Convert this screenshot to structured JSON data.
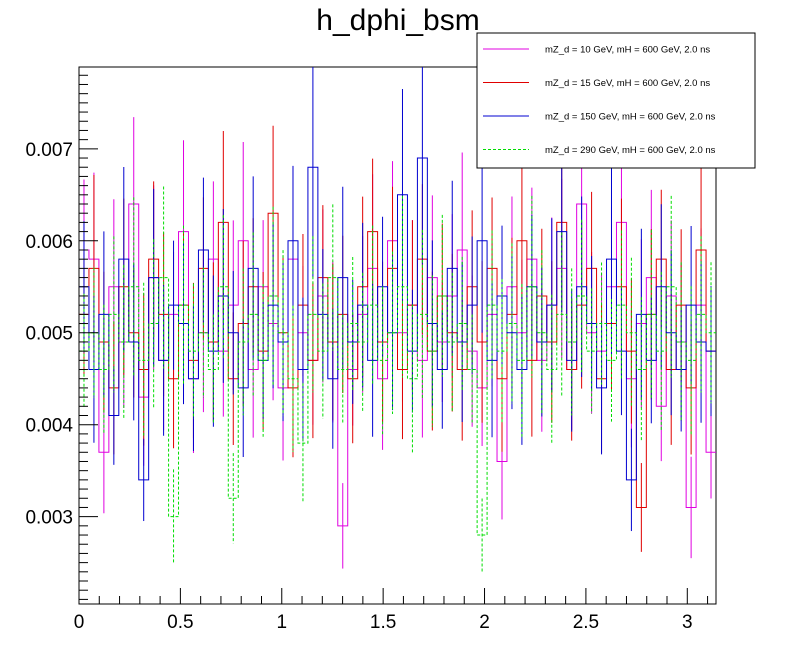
{
  "chart_data": {
    "type": "line",
    "title": "h_dphi_bsm",
    "xlabel": "",
    "ylabel": "",
    "xlim": [
      0,
      3.1416
    ],
    "ylim": [
      0.00205,
      0.00789
    ],
    "x_ticks": [
      0,
      0.5,
      1,
      1.5,
      2,
      2.5,
      3
    ],
    "x_tick_labels": [
      "0",
      "0.5",
      "1",
      "1.5",
      "2",
      "2.5",
      "3"
    ],
    "y_ticks": [
      0.003,
      0.004,
      0.005,
      0.006,
      0.007
    ],
    "y_tick_labels": [
      "0.003",
      "0.004",
      "0.005",
      "0.006",
      "0.007"
    ],
    "grid": false,
    "legend_position": "top-right",
    "bins": 64,
    "series": [
      {
        "name": "mZ_d = 10 GeV, mH = 600 GeV, 2.0 ns",
        "color": "#e000e0",
        "style": "solid",
        "values": [
          0.0059,
          0.0058,
          0.0037,
          0.0055,
          0.0049,
          0.0064,
          0.0043,
          0.0056,
          0.0047,
          0.0052,
          0.0061,
          0.0045,
          0.005,
          0.0058,
          0.0048,
          0.0053,
          0.006,
          0.0046,
          0.0055,
          0.0051,
          0.0044,
          0.0058,
          0.005,
          0.0047,
          0.0054,
          0.0049,
          0.0029,
          0.0046,
          0.0052,
          0.0057,
          0.0045,
          0.006,
          0.005,
          0.0053,
          0.0047,
          0.0056,
          0.0049,
          0.0054,
          0.0059,
          0.0048,
          0.0044,
          0.0052,
          0.0036,
          0.0055,
          0.005,
          0.0058,
          0.0047,
          0.0053,
          0.0057,
          0.0046,
          0.0064,
          0.005,
          0.0048,
          0.0055,
          0.0062,
          0.0045,
          0.0051,
          0.0056,
          0.0042,
          0.0054,
          0.0049,
          0.0031,
          0.0053,
          0.0037
        ]
      },
      {
        "name": "mZ_d = 15 GeV, mH = 600 GeV, 2.0 ns",
        "color": "#e00000",
        "style": "solid",
        "values": [
          0.0052,
          0.0057,
          0.0049,
          0.0044,
          0.0055,
          0.005,
          0.0046,
          0.0058,
          0.0052,
          0.0045,
          0.0053,
          0.0047,
          0.0057,
          0.0049,
          0.0062,
          0.0045,
          0.0051,
          0.0055,
          0.0048,
          0.0063,
          0.005,
          0.0044,
          0.0053,
          0.0047,
          0.0056,
          0.0049,
          0.0052,
          0.0045,
          0.0055,
          0.0061,
          0.0049,
          0.0057,
          0.0046,
          0.0053,
          0.0058,
          0.0048,
          0.0054,
          0.005,
          0.0046,
          0.0055,
          0.0049,
          0.0057,
          0.0045,
          0.0052,
          0.006,
          0.0047,
          0.0054,
          0.0049,
          0.0062,
          0.0046,
          0.0053,
          0.0057,
          0.0045,
          0.0051,
          0.0055,
          0.0048,
          0.0031,
          0.0052,
          0.0058,
          0.0046,
          0.0053,
          0.0044,
          0.0059,
          0.0048
        ]
      },
      {
        "name": "mZ_d = 150 GeV, mH = 600 GeV, 2.0 ns",
        "color": "#0000d0",
        "style": "solid",
        "values": [
          0.0055,
          0.0046,
          0.0052,
          0.0041,
          0.0058,
          0.0049,
          0.0034,
          0.0056,
          0.0047,
          0.0053,
          0.0051,
          0.0045,
          0.0059,
          0.0048,
          0.0054,
          0.005,
          0.0044,
          0.0057,
          0.0047,
          0.0053,
          0.0049,
          0.006,
          0.0046,
          0.0068,
          0.0052,
          0.0045,
          0.0056,
          0.0049,
          0.0053,
          0.0047,
          0.0055,
          0.005,
          0.0065,
          0.0048,
          0.0069,
          0.0051,
          0.0046,
          0.0057,
          0.0049,
          0.0053,
          0.006,
          0.0047,
          0.0054,
          0.005,
          0.0046,
          0.0055,
          0.0049,
          0.0053,
          0.0061,
          0.0047,
          0.0055,
          0.0051,
          0.0044,
          0.0058,
          0.0048,
          0.0034,
          0.0052,
          0.0047,
          0.0055,
          0.005,
          0.0046,
          0.0053,
          0.0049,
          0.0048
        ]
      },
      {
        "name": "mZ_d = 290 GeV, mH = 600 GeV, 2.0 ns",
        "color": "#00dd00",
        "style": "dashed",
        "values": [
          0.0048,
          0.005,
          0.0046,
          0.0052,
          0.0049,
          0.0055,
          0.0047,
          0.0051,
          0.0056,
          0.003,
          0.0053,
          0.0048,
          0.005,
          0.0046,
          0.0055,
          0.0032,
          0.0049,
          0.0052,
          0.0047,
          0.0054,
          0.005,
          0.0045,
          0.0038,
          0.0052,
          0.0048,
          0.0056,
          0.0046,
          0.0051,
          0.0049,
          0.0053,
          0.0047,
          0.005,
          0.0055,
          0.0045,
          0.0052,
          0.0048,
          0.0054,
          0.0049,
          0.0051,
          0.0046,
          0.0028,
          0.0053,
          0.0048,
          0.0051,
          0.0047,
          0.0055,
          0.005,
          0.0046,
          0.0052,
          0.0049,
          0.0054,
          0.0048,
          0.0051,
          0.0047,
          0.0053,
          0.005,
          0.0046,
          0.0052,
          0.0048,
          0.0055,
          0.0049,
          0.0047,
          0.0052,
          0.005
        ]
      }
    ]
  }
}
